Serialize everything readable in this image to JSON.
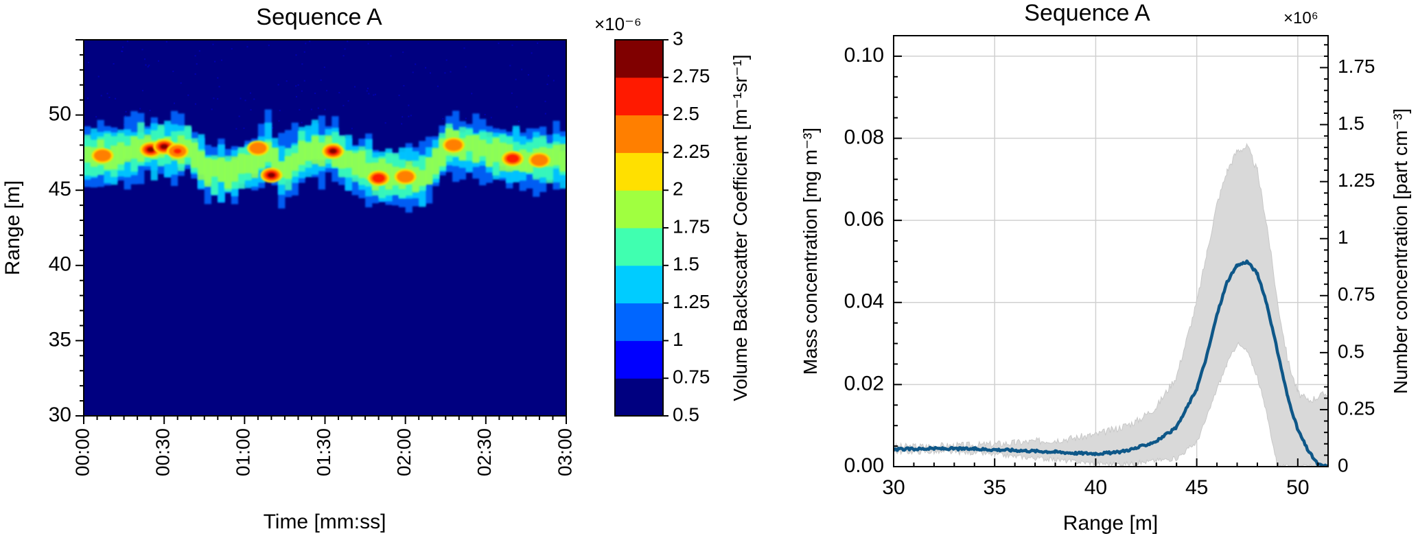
{
  "chart_data": [
    {
      "type": "heatmap",
      "title": "Sequence A",
      "xlabel": "Time [mm:ss]",
      "ylabel": "Range [m]",
      "xlim_seconds": [
        0,
        180
      ],
      "ylim": [
        30,
        55
      ],
      "x_ticks": [
        {
          "seconds": 0,
          "label": "00:00"
        },
        {
          "seconds": 30,
          "label": "00:30"
        },
        {
          "seconds": 60,
          "label": "01:00"
        },
        {
          "seconds": 90,
          "label": "01:30"
        },
        {
          "seconds": 120,
          "label": "02:00"
        },
        {
          "seconds": 150,
          "label": "02:30"
        },
        {
          "seconds": 180,
          "label": "03:00"
        }
      ],
      "y_ticks": [
        30,
        35,
        40,
        45,
        50
      ],
      "grid": false,
      "colorbar": {
        "label": "Volume Backscatter Coefficient [m⁻¹sr⁻¹]",
        "multiplier": "×10⁻⁶",
        "min": 0.5,
        "max": 3,
        "tick_labels": [
          "0.5",
          "0.75",
          "1",
          "1.25",
          "1.5",
          "1.75",
          "2",
          "2.25",
          "2.5",
          "2.75",
          "3"
        ],
        "colors": [
          "#000080",
          "#0000ff",
          "#0066ff",
          "#00ccff",
          "#40ffb0",
          "#a0ff40",
          "#ffe000",
          "#ff7f00",
          "#ff1a00",
          "#800000"
        ]
      },
      "background_color": "#000080",
      "plume_center_range_m": [
        {
          "t": 0,
          "r": 47.2
        },
        {
          "t": 10,
          "r": 47.3
        },
        {
          "t": 20,
          "r": 47.8
        },
        {
          "t": 30,
          "r": 47.9
        },
        {
          "t": 38,
          "r": 47.8
        },
        {
          "t": 45,
          "r": 46.2
        },
        {
          "t": 55,
          "r": 46.3
        },
        {
          "t": 63,
          "r": 47.0
        },
        {
          "t": 68,
          "r": 47.8
        },
        {
          "t": 72,
          "r": 46.0
        },
        {
          "t": 80,
          "r": 47.5
        },
        {
          "t": 92,
          "r": 47.7
        },
        {
          "t": 100,
          "r": 46.6
        },
        {
          "t": 110,
          "r": 46.0
        },
        {
          "t": 125,
          "r": 45.9
        },
        {
          "t": 135,
          "r": 48.0
        },
        {
          "t": 148,
          "r": 47.7
        },
        {
          "t": 160,
          "r": 47.2
        },
        {
          "t": 180,
          "r": 47.0
        }
      ],
      "hotspots": [
        {
          "t": 7,
          "r": 47.3,
          "value": 2.3
        },
        {
          "t": 25,
          "r": 47.7,
          "value": 2.8
        },
        {
          "t": 30,
          "r": 47.9,
          "value": 2.9
        },
        {
          "t": 35,
          "r": 47.6,
          "value": 2.5
        },
        {
          "t": 65,
          "r": 47.8,
          "value": 2.3
        },
        {
          "t": 70,
          "r": 46.0,
          "value": 2.9
        },
        {
          "t": 93,
          "r": 47.6,
          "value": 3.0
        },
        {
          "t": 110,
          "r": 45.8,
          "value": 2.6
        },
        {
          "t": 120,
          "r": 45.9,
          "value": 2.4
        },
        {
          "t": 138,
          "r": 48.0,
          "value": 2.3
        },
        {
          "t": 160,
          "r": 47.1,
          "value": 2.6
        },
        {
          "t": 170,
          "r": 47.0,
          "value": 2.3
        }
      ]
    },
    {
      "type": "line",
      "title": "Sequence A",
      "xlabel": "Range [m]",
      "ylabel": "Mass concentration [mg m⁻³]",
      "ylabel_right": "Number concentration [part cm⁻³]",
      "right_multiplier": "×10⁶",
      "xlim": [
        30,
        51.5
      ],
      "ylim": [
        0,
        0.105
      ],
      "ylim_right": [
        0,
        1.89
      ],
      "x_ticks": [
        30,
        35,
        40,
        45,
        50
      ],
      "y_ticks": [
        "0.00",
        "0.02",
        "0.04",
        "0.06",
        "0.08",
        "0.10"
      ],
      "y_ticks_right": [
        "0",
        "0.25",
        "0.5",
        "0.75",
        "1",
        "1.25",
        "1.5",
        "1.75"
      ],
      "grid": true,
      "line_color": "#0e5788",
      "band_color": "#d9d9d9",
      "series": [
        {
          "x": [
            30,
            32,
            34,
            36,
            38,
            39,
            40,
            41,
            42,
            43,
            44,
            45,
            45.5,
            46,
            46.5,
            47,
            47.5,
            48,
            48.5,
            49,
            49.5,
            50,
            50.5,
            51,
            51.5
          ],
          "y": [
            0.0042,
            0.0044,
            0.0043,
            0.004,
            0.0036,
            0.0033,
            0.0032,
            0.0034,
            0.0045,
            0.0062,
            0.0095,
            0.019,
            0.027,
            0.037,
            0.045,
            0.049,
            0.05,
            0.047,
            0.039,
            0.028,
            0.017,
            0.009,
            0.004,
            0.0005,
            0.0
          ],
          "y_upper": [
            0.0048,
            0.005,
            0.0052,
            0.0058,
            0.0065,
            0.007,
            0.0078,
            0.0092,
            0.011,
            0.0145,
            0.022,
            0.04,
            0.052,
            0.064,
            0.072,
            0.077,
            0.078,
            0.072,
            0.058,
            0.04,
            0.026,
            0.018,
            0.016,
            0.017,
            0.018
          ],
          "y_lower": [
            0.0036,
            0.0036,
            0.0034,
            0.0025,
            0.0017,
            0.0012,
            0.0008,
            0.0006,
            0.0008,
            0.0015,
            0.002,
            0.006,
            0.012,
            0.019,
            0.025,
            0.03,
            0.028,
            0.022,
            0.012,
            0.0,
            0.0,
            0.0,
            0.0,
            0.0,
            0.0
          ]
        }
      ]
    }
  ]
}
